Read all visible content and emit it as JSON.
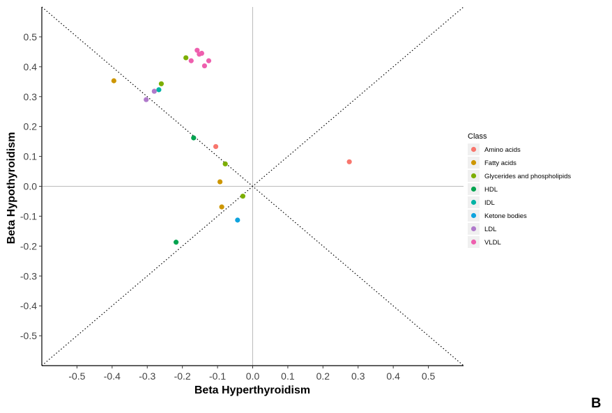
{
  "panel_label": "B",
  "chart_data": {
    "type": "scatter",
    "xlabel": "Beta Hyperthyroidism",
    "ylabel": "Beta Hypothyroidism",
    "xlim": [
      -0.6,
      0.6
    ],
    "ylim": [
      -0.6,
      0.6
    ],
    "x_ticks": [
      -0.5,
      -0.4,
      -0.3,
      -0.2,
      -0.1,
      0.0,
      0.1,
      0.2,
      0.3,
      0.4,
      0.5
    ],
    "y_ticks": [
      0.5,
      0.4,
      0.3,
      0.2,
      0.1,
      0.0,
      -0.1,
      -0.2,
      -0.3,
      -0.4,
      -0.5
    ],
    "x_tick_labels": [
      "-0.5",
      "-0.4",
      "-0.3",
      "-0.2",
      "-0.1",
      "0.0",
      "0.1",
      "0.2",
      "0.3",
      "0.4",
      "0.5"
    ],
    "y_tick_labels": [
      "0.5",
      "0.4",
      "0.3",
      "0.2",
      "0.1",
      "0.0",
      "-0.1",
      "-0.2",
      "-0.3",
      "-0.4",
      "-0.5"
    ],
    "grid": false,
    "reference_lines": {
      "x_zero": true,
      "y_zero": true,
      "diagonals": true
    },
    "legend": {
      "title": "Class",
      "position": "right"
    },
    "series": [
      {
        "name": "Amino acids",
        "color": "#F8766D",
        "points": [
          [
            0.275,
            0.082
          ],
          [
            -0.105,
            0.133
          ]
        ]
      },
      {
        "name": "Fatty acids",
        "color": "#CD9600",
        "points": [
          [
            -0.395,
            0.353
          ],
          [
            -0.093,
            0.015
          ],
          [
            -0.088,
            -0.069
          ]
        ]
      },
      {
        "name": "Glycerides and phospholipids",
        "color": "#7CAE00",
        "points": [
          [
            -0.26,
            0.343
          ],
          [
            -0.19,
            0.43
          ],
          [
            -0.078,
            0.075
          ],
          [
            -0.028,
            -0.033
          ]
        ]
      },
      {
        "name": "HDL",
        "color": "#00A34F",
        "points": [
          [
            -0.168,
            0.162
          ],
          [
            -0.218,
            -0.187
          ]
        ]
      },
      {
        "name": "IDL",
        "color": "#00B3A5",
        "points": [
          [
            -0.267,
            0.323
          ]
        ]
      },
      {
        "name": "Ketone bodies",
        "color": "#0EA3DE",
        "points": [
          [
            -0.043,
            -0.113
          ]
        ]
      },
      {
        "name": "LDL",
        "color": "#B07ACB",
        "points": [
          [
            -0.28,
            0.318
          ],
          [
            -0.303,
            0.29
          ]
        ]
      },
      {
        "name": "VLDL",
        "color": "#EE5FAE",
        "points": [
          [
            -0.158,
            0.455
          ],
          [
            -0.152,
            0.442
          ],
          [
            -0.145,
            0.445
          ],
          [
            -0.175,
            0.42
          ],
          [
            -0.137,
            0.403
          ],
          [
            -0.125,
            0.42
          ]
        ]
      }
    ]
  }
}
